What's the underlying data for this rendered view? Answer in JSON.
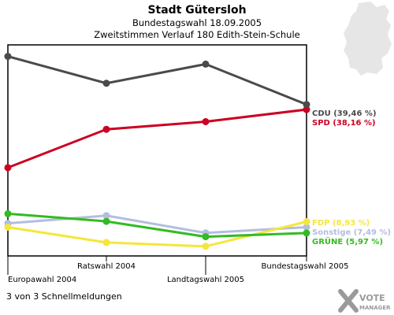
{
  "chart_data": {
    "type": "line",
    "title": "Stadt Gütersloh",
    "subtitle": "Bundestagswahl 18.09.2005",
    "subtitle2": "Zweitstimmen Verlauf 180 Edith-Stein-Schule",
    "categories": [
      "Europawahl 2004",
      "Ratswahl 2004",
      "Landtagswahl 2005",
      "Bundestagswahl 2005"
    ],
    "ylim": [
      0,
      55
    ],
    "grid": false,
    "series": [
      {
        "name": "CDU",
        "label": "CDU (39,46 %)",
        "color": "#4a4a4a",
        "values": [
          52.0,
          45.0,
          50.0,
          39.46
        ]
      },
      {
        "name": "SPD",
        "label": "SPD (38,16 %)",
        "color": "#cc0022",
        "values": [
          23.0,
          33.0,
          35.0,
          38.16
        ]
      },
      {
        "name": "FDP",
        "label": "FDP (8,93 %)",
        "color": "#f5e63c",
        "values": [
          7.5,
          3.5,
          2.5,
          8.93
        ]
      },
      {
        "name": "Sonstige",
        "label": "Sonstige (7,49 %)",
        "color": "#b4bde0",
        "values": [
          8.5,
          10.5,
          6.0,
          7.49
        ]
      },
      {
        "name": "GRÜNE",
        "label": "GRÜNE (5,97 %)",
        "color": "#33bb22",
        "values": [
          11.0,
          9.0,
          5.0,
          5.97
        ]
      }
    ]
  },
  "footer": {
    "text": "3 von 3 Schnellmeldungen",
    "logo_line1": "VOTE",
    "logo_line2": "MANAGER"
  }
}
